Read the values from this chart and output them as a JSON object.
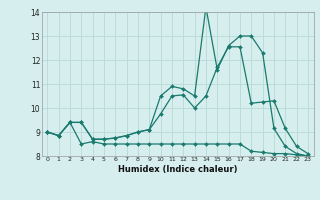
{
  "xlabel": "Humidex (Indice chaleur)",
  "x_values": [
    0,
    1,
    2,
    3,
    4,
    5,
    6,
    7,
    8,
    9,
    10,
    11,
    12,
    13,
    14,
    15,
    16,
    17,
    18,
    19,
    20,
    21,
    22,
    23
  ],
  "line1": [
    9.0,
    8.85,
    9.4,
    8.5,
    8.6,
    8.5,
    8.5,
    8.5,
    8.5,
    8.5,
    8.5,
    8.5,
    8.5,
    8.5,
    8.5,
    8.5,
    8.5,
    8.5,
    8.2,
    8.15,
    8.1,
    8.1,
    8.05,
    8.0
  ],
  "line2": [
    9.0,
    8.85,
    9.4,
    9.4,
    8.7,
    8.7,
    8.75,
    8.85,
    9.0,
    9.1,
    9.75,
    10.5,
    10.55,
    10.0,
    10.5,
    11.7,
    12.55,
    12.55,
    10.2,
    10.25,
    10.3,
    9.15,
    8.4,
    8.1
  ],
  "line3": [
    9.0,
    8.85,
    9.4,
    9.4,
    8.7,
    8.7,
    8.75,
    8.85,
    9.0,
    9.1,
    10.5,
    10.9,
    10.8,
    10.5,
    14.2,
    11.6,
    12.6,
    13.0,
    13.0,
    12.3,
    9.15,
    8.4,
    8.1,
    8.0
  ],
  "ylim": [
    8,
    14
  ],
  "xlim_min": -0.5,
  "xlim_max": 23.5,
  "yticks": [
    8,
    9,
    10,
    11,
    12,
    13,
    14
  ],
  "xticks": [
    0,
    1,
    2,
    3,
    4,
    5,
    6,
    7,
    8,
    9,
    10,
    11,
    12,
    13,
    14,
    15,
    16,
    17,
    18,
    19,
    20,
    21,
    22,
    23
  ],
  "line_color": "#1a7a6e",
  "bg_color": "#d6eeee",
  "grid_color": "#b8d8d8"
}
